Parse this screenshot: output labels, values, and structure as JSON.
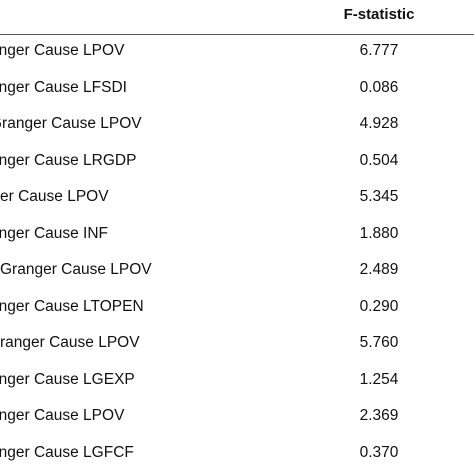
{
  "table": {
    "header": {
      "stat_label": "F-statistic"
    },
    "rows": [
      {
        "hypothesis": "anger Cause LPOV",
        "f_statistic": "6.777"
      },
      {
        "hypothesis": "anger Cause LFSDI",
        "f_statistic": "0.086"
      },
      {
        "hypothesis": "Granger Cause LPOV",
        "f_statistic": "4.928"
      },
      {
        "hypothesis": "anger Cause LRGDP",
        "f_statistic": "0.504"
      },
      {
        "hypothesis": "er Cause LPOV",
        "f_statistic": "5.345"
      },
      {
        "hypothesis": "anger Cause INF",
        "f_statistic": "1.880"
      },
      {
        "hypothesis": "Granger Cause LPOV",
        "f_statistic": "2.489"
      },
      {
        "hypothesis": "anger Cause LTOPEN",
        "f_statistic": "0.290"
      },
      {
        "hypothesis": "ranger Cause LPOV",
        "f_statistic": "5.760"
      },
      {
        "hypothesis": "anger Cause LGEXP",
        "f_statistic": "1.254"
      },
      {
        "hypothesis": "anger Cause LPOV",
        "f_statistic": "2.369"
      },
      {
        "hypothesis": "anger Cause LGFCF",
        "f_statistic": "0.370"
      }
    ]
  }
}
